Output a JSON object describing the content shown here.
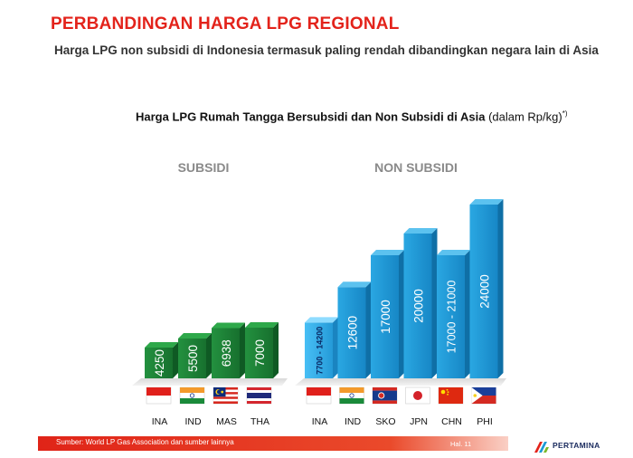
{
  "header": {
    "title": "PERBANDINGAN HARGA LPG REGIONAL",
    "subtitle": "Harga LPG non subsidi di Indonesia termasuk paling rendah dibandingkan negara lain di Asia"
  },
  "chart_title": {
    "bold": "Harga LPG Rumah Tangga Bersubsidi dan Non Subsidi di Asia",
    "normal": " (dalam Rp/kg)",
    "sup": "*)"
  },
  "chart_data": {
    "type": "bar",
    "title": "Harga LPG Rumah Tangga Bersubsidi dan Non Subsidi di Asia (dalam Rp/kg)*)",
    "groups": [
      {
        "name": "SUBSIDI",
        "color": "#1f8a3c",
        "bars": [
          {
            "category": "INA",
            "value": 4250,
            "label": "4250",
            "flag": "indonesia-flag"
          },
          {
            "category": "IND",
            "value": 5500,
            "label": "5500",
            "flag": "india-flag"
          },
          {
            "category": "MAS",
            "value": 6938,
            "label": "6938",
            "flag": "malaysia-flag"
          },
          {
            "category": "THA",
            "value": 7000,
            "label": "7000",
            "flag": "thailand-flag"
          }
        ]
      },
      {
        "name": "NON SUBSIDI",
        "color": "#1c9ad6",
        "bars": [
          {
            "category": "INA",
            "value": 7700,
            "value_high": 14200,
            "label": "7700 - 14200",
            "flag": "indonesia-flag",
            "highlight": true
          },
          {
            "category": "IND",
            "value": 12600,
            "label": "12600",
            "flag": "india-flag"
          },
          {
            "category": "SKO",
            "value": 17000,
            "label": "17000",
            "flag": "south-korea-flag"
          },
          {
            "category": "JPN",
            "value": 20000,
            "label": "20000",
            "flag": "japan-flag"
          },
          {
            "category": "CHN",
            "value": 17000,
            "value_high": 21000,
            "label": "17000 - 21000",
            "flag": "china-flag"
          },
          {
            "category": "PHI",
            "value": 24000,
            "label": "24000",
            "flag": "philippines-flag"
          }
        ]
      }
    ]
  },
  "footer": {
    "source": "Sumber: World LP Gas Association dan sumber lainnya",
    "page": "Hal. 11",
    "logo_text": "PERTAMINA"
  }
}
